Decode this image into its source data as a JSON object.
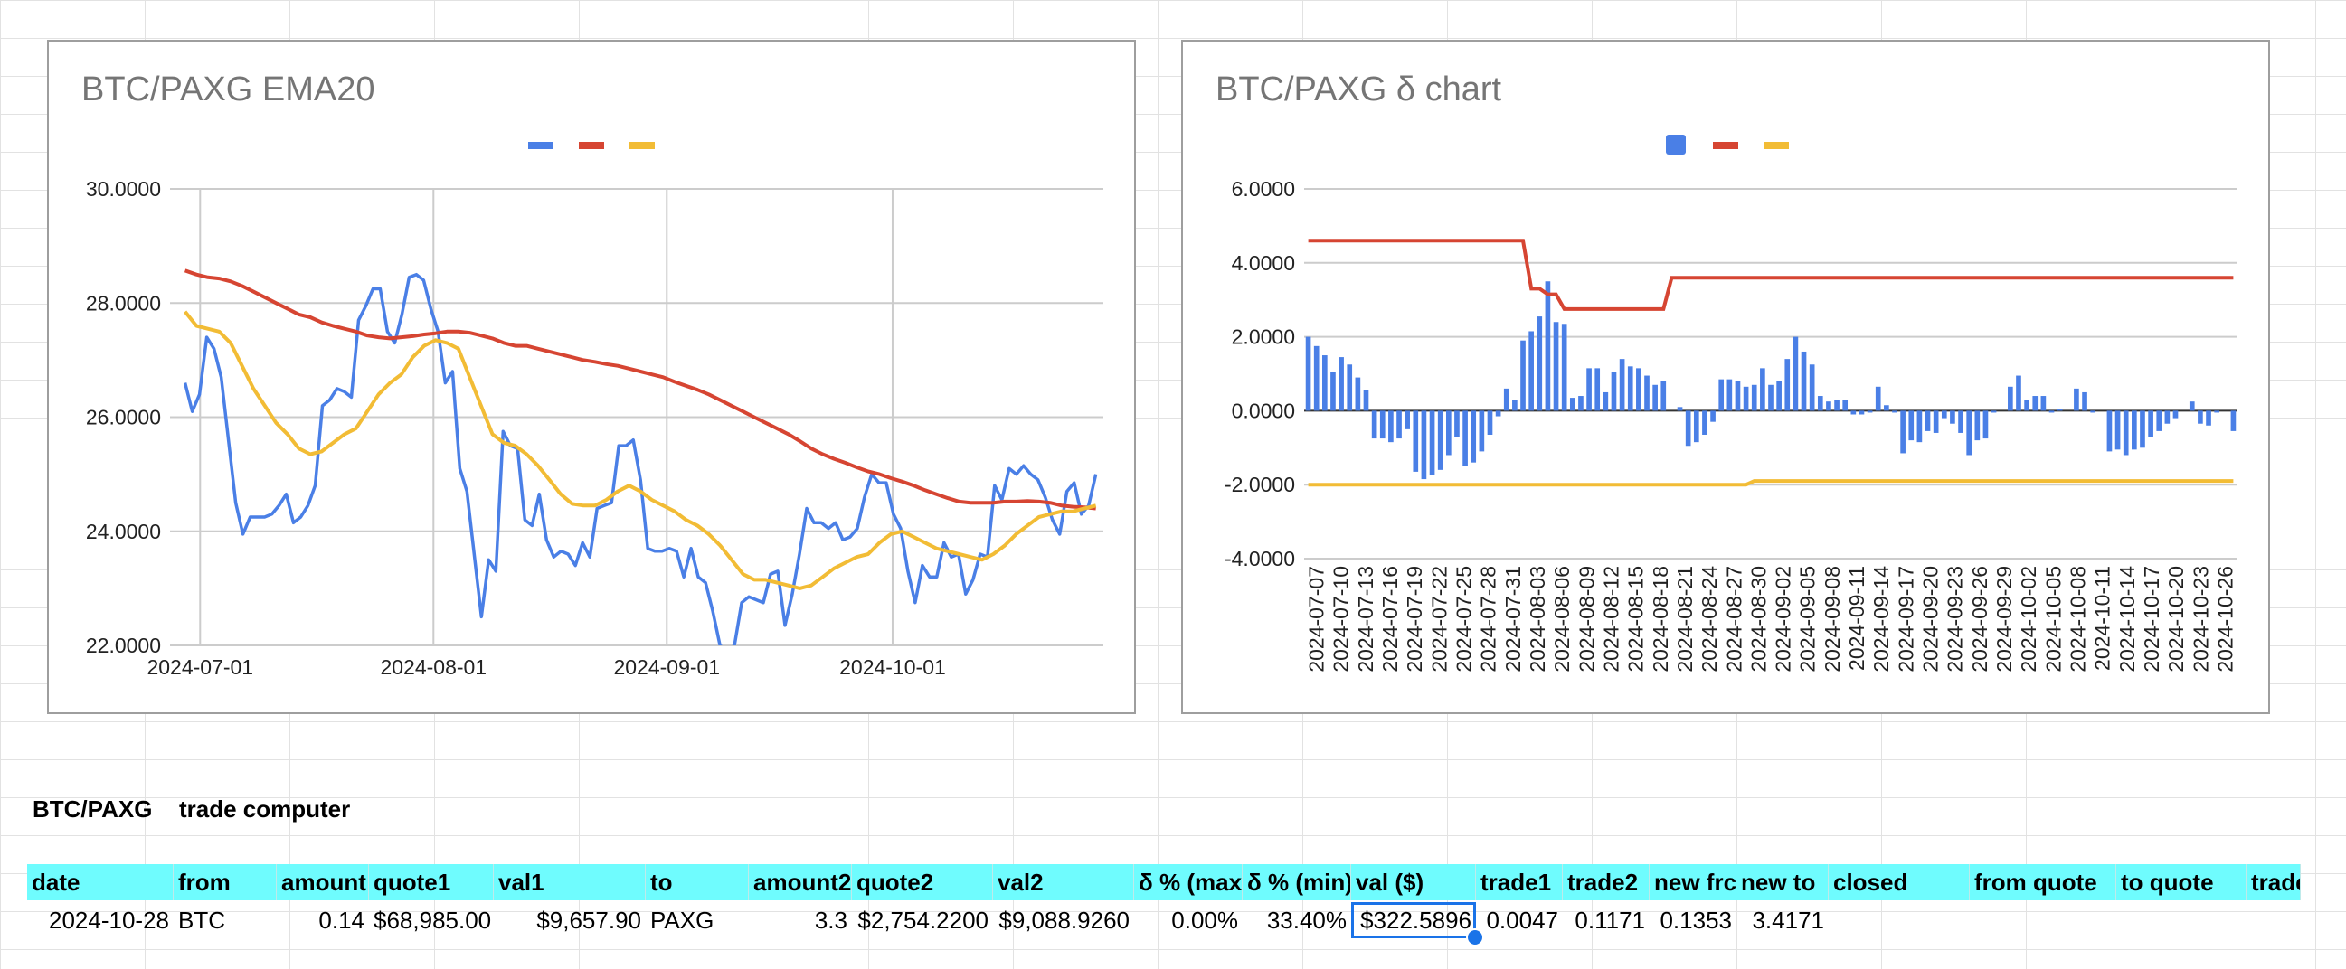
{
  "colors": {
    "blue": "#4a7fe6",
    "red": "#d64532",
    "yellow": "#f2bc35",
    "header_bg": "#6ffcfe",
    "selection": "#1a73e8"
  },
  "chart_data": [
    {
      "type": "line",
      "title": "BTC/PAXG EMA20",
      "legend": "top-center",
      "grid": true,
      "ylim": [
        22,
        30
      ],
      "y_ticks": [
        "30.0000",
        "28.0000",
        "26.0000",
        "24.0000",
        "22.0000"
      ],
      "x_ticks": [
        "2024-07-01",
        "2024-08-01",
        "2024-09-01",
        "2024-10-01"
      ],
      "x_tick_days": [
        0,
        31,
        62,
        92
      ],
      "x_start_day": -4,
      "x_end_day": 120,
      "series": [
        {
          "color": "#4a7fe6",
          "values": [
            26.6,
            26.1,
            26.4,
            27.4,
            27.2,
            26.7,
            25.6,
            24.5,
            23.95,
            24.25,
            24.25,
            24.25,
            24.3,
            24.45,
            24.65,
            24.15,
            24.25,
            24.45,
            24.8,
            26.2,
            26.3,
            26.5,
            26.45,
            26.35,
            27.7,
            27.95,
            28.25,
            28.25,
            27.5,
            27.3,
            27.8,
            28.45,
            28.5,
            28.4,
            27.9,
            27.5,
            26.6,
            26.8,
            25.1,
            24.7,
            23.6,
            22.5,
            23.5,
            23.3,
            25.75,
            25.5,
            25.45,
            24.2,
            24.1,
            24.65,
            23.85,
            23.55,
            23.65,
            23.6,
            23.4,
            23.8,
            23.55,
            24.4,
            24.45,
            24.5,
            25.5,
            25.5,
            25.6,
            24.9,
            23.7,
            23.65,
            23.65,
            23.7,
            23.65,
            23.2,
            23.7,
            23.2,
            23.1,
            22.6,
            22.0,
            21.9,
            22.0,
            22.75,
            22.85,
            22.8,
            22.75,
            23.25,
            23.3,
            22.35,
            22.9,
            23.6,
            24.4,
            24.15,
            24.15,
            24.05,
            24.15,
            23.85,
            23.9,
            24.05,
            24.6,
            25.0,
            24.85,
            24.85,
            24.3,
            24.05,
            23.3,
            22.75,
            23.4,
            23.2,
            23.2,
            23.8,
            23.55,
            23.6,
            22.9,
            23.15,
            23.6,
            23.55,
            24.8,
            24.55,
            25.1,
            25.0,
            25.15,
            25.0,
            24.9,
            24.6,
            24.2,
            23.95,
            24.7,
            24.85,
            24.3,
            24.45,
            25.0
          ]
        },
        {
          "color": "#d64532",
          "values": [
            28.57,
            28.5,
            28.45,
            28.43,
            28.38,
            28.3,
            28.2,
            28.1,
            28.0,
            27.9,
            27.8,
            27.75,
            27.66,
            27.6,
            27.55,
            27.5,
            27.43,
            27.4,
            27.38,
            27.4,
            27.42,
            27.45,
            27.47,
            27.5,
            27.5,
            27.48,
            27.43,
            27.38,
            27.3,
            27.25,
            27.25,
            27.2,
            27.15,
            27.1,
            27.05,
            27.0,
            26.97,
            26.93,
            26.9,
            26.85,
            26.8,
            26.75,
            26.7,
            26.62,
            26.55,
            26.48,
            26.4,
            26.3,
            26.2,
            26.1,
            26.0,
            25.9,
            25.8,
            25.7,
            25.58,
            25.45,
            25.35,
            25.27,
            25.2,
            25.12,
            25.05,
            25.0,
            24.93,
            24.87,
            24.8,
            24.72,
            24.65,
            24.58,
            24.52,
            24.5,
            24.5,
            24.5,
            24.52,
            24.52,
            24.53,
            24.52,
            24.5,
            24.45,
            24.43,
            24.42,
            24.4
          ]
        },
        {
          "color": "#f2bc35",
          "values": [
            27.85,
            27.6,
            27.55,
            27.5,
            27.3,
            26.9,
            26.5,
            26.2,
            25.9,
            25.7,
            25.45,
            25.35,
            25.4,
            25.55,
            25.7,
            25.8,
            26.1,
            26.4,
            26.6,
            26.75,
            27.05,
            27.25,
            27.35,
            27.3,
            27.2,
            26.7,
            26.2,
            25.7,
            25.55,
            25.5,
            25.35,
            25.15,
            24.9,
            24.65,
            24.48,
            24.45,
            24.45,
            24.55,
            24.7,
            24.8,
            24.7,
            24.55,
            24.45,
            24.35,
            24.2,
            24.1,
            23.95,
            23.75,
            23.5,
            23.25,
            23.15,
            23.15,
            23.1,
            23.05,
            23.0,
            23.05,
            23.2,
            23.35,
            23.45,
            23.55,
            23.6,
            23.8,
            23.95,
            24.0,
            23.9,
            23.8,
            23.7,
            23.65,
            23.6,
            23.55,
            23.5,
            23.6,
            23.75,
            23.95,
            24.1,
            24.25,
            24.3,
            24.35,
            24.35,
            24.4,
            24.45
          ]
        }
      ]
    },
    {
      "type": "bar",
      "title": "BTC/PAXG δ chart",
      "legend": "top-center",
      "grid": true,
      "ylim": [
        -4,
        6
      ],
      "y_ticks": [
        "6.0000",
        "4.0000",
        "2.0000",
        "0.0000",
        "-2.0000",
        "-4.0000"
      ],
      "categories": [
        "2024-07-07",
        "2024-07-10",
        "2024-07-13",
        "2024-07-16",
        "2024-07-19",
        "2024-07-22",
        "2024-07-25",
        "2024-07-28",
        "2024-07-31",
        "2024-08-03",
        "2024-08-06",
        "2024-08-09",
        "2024-08-12",
        "2024-08-15",
        "2024-08-18",
        "2024-08-21",
        "2024-08-24",
        "2024-08-27",
        "2024-08-30",
        "2024-09-02",
        "2024-09-05",
        "2024-09-08",
        "2024-09-11",
        "2024-09-14",
        "2024-09-17",
        "2024-09-20",
        "2024-09-23",
        "2024-09-26",
        "2024-09-29",
        "2024-10-02",
        "2024-10-05",
        "2024-10-08",
        "2024-10-11",
        "2024-10-14",
        "2024-10-17",
        "2024-10-20",
        "2024-10-23",
        "2024-10-26"
      ],
      "bar_values": [
        2.0,
        1.75,
        1.5,
        1.05,
        1.45,
        1.25,
        0.9,
        0.55,
        -0.75,
        -0.75,
        -0.85,
        -0.75,
        -0.5,
        -1.65,
        -1.85,
        -1.75,
        -1.6,
        -1.2,
        -0.7,
        -1.5,
        -1.4,
        -1.1,
        -0.65,
        -0.15,
        0.6,
        0.3,
        1.9,
        2.15,
        2.55,
        3.5,
        2.4,
        2.35,
        0.35,
        0.4,
        1.15,
        1.15,
        0.5,
        1.05,
        1.4,
        1.2,
        1.15,
        0.95,
        0.7,
        0.8,
        0.0,
        0.1,
        -0.95,
        -0.85,
        -0.65,
        -0.3,
        0.85,
        0.85,
        0.8,
        0.65,
        0.7,
        1.15,
        0.7,
        0.8,
        1.4,
        2.0,
        1.6,
        1.25,
        0.4,
        0.25,
        0.3,
        0.3,
        -0.1,
        -0.1,
        -0.05,
        0.65,
        0.15,
        -0.05,
        -1.15,
        -0.8,
        -0.85,
        -0.55,
        -0.6,
        -0.2,
        -0.35,
        -0.6,
        -1.2,
        -0.8,
        -0.75,
        -0.05,
        0.0,
        0.65,
        0.95,
        0.3,
        0.4,
        0.4,
        -0.05,
        0.05,
        0.0,
        0.6,
        0.5,
        -0.05,
        0.0,
        -1.1,
        -1.05,
        -1.2,
        -1.05,
        -1.0,
        -0.7,
        -0.55,
        -0.35,
        -0.2,
        0.0,
        0.25,
        -0.35,
        -0.4,
        -0.05,
        0.0,
        -0.55
      ],
      "upper_values": [
        4.6,
        4.6,
        4.6,
        4.6,
        4.6,
        4.6,
        4.6,
        4.6,
        4.6,
        4.6,
        4.6,
        4.6,
        4.6,
        4.6,
        4.6,
        4.6,
        4.6,
        4.6,
        4.6,
        4.6,
        4.6,
        4.6,
        4.6,
        4.6,
        4.6,
        4.6,
        4.6,
        3.3,
        3.3,
        3.15,
        3.15,
        2.75,
        2.75,
        2.75,
        2.75,
        2.75,
        2.75,
        2.75,
        2.75,
        2.75,
        2.75,
        2.75,
        2.75,
        2.75,
        3.6,
        3.6,
        3.6,
        3.6,
        3.6,
        3.6,
        3.6,
        3.6,
        3.6,
        3.6,
        3.6,
        3.6,
        3.6,
        3.6,
        3.6,
        3.6,
        3.6,
        3.6,
        3.6,
        3.6,
        3.6,
        3.6,
        3.6,
        3.6,
        3.6,
        3.6,
        3.6,
        3.6,
        3.6,
        3.6,
        3.6,
        3.6,
        3.6,
        3.6,
        3.6,
        3.6,
        3.6,
        3.6,
        3.6,
        3.6,
        3.6,
        3.6,
        3.6,
        3.6,
        3.6,
        3.6,
        3.6,
        3.6,
        3.6,
        3.6,
        3.6,
        3.6,
        3.6,
        3.6,
        3.6,
        3.6,
        3.6,
        3.6,
        3.6,
        3.6,
        3.6,
        3.6,
        3.6,
        3.6,
        3.6,
        3.6,
        3.6,
        3.6,
        3.6
      ],
      "lower_values": [
        -2.0,
        -2.0,
        -2.0,
        -2.0,
        -2.0,
        -2.0,
        -2.0,
        -2.0,
        -2.0,
        -2.0,
        -2.0,
        -2.0,
        -2.0,
        -2.0,
        -2.0,
        -2.0,
        -2.0,
        -2.0,
        -2.0,
        -2.0,
        -2.0,
        -2.0,
        -2.0,
        -2.0,
        -2.0,
        -2.0,
        -2.0,
        -2.0,
        -2.0,
        -2.0,
        -2.0,
        -2.0,
        -2.0,
        -2.0,
        -2.0,
        -2.0,
        -2.0,
        -2.0,
        -2.0,
        -2.0,
        -2.0,
        -2.0,
        -2.0,
        -2.0,
        -2.0,
        -2.0,
        -2.0,
        -2.0,
        -2.0,
        -2.0,
        -2.0,
        -2.0,
        -2.0,
        -2.0,
        -1.9,
        -1.9,
        -1.9,
        -1.9,
        -1.9,
        -1.9,
        -1.9,
        -1.9,
        -1.9,
        -1.9,
        -1.9,
        -1.9,
        -1.9,
        -1.9,
        -1.9,
        -1.9,
        -1.9,
        -1.9,
        -1.9,
        -1.9,
        -1.9,
        -1.9,
        -1.9,
        -1.9,
        -1.9,
        -1.9,
        -1.9,
        -1.9,
        -1.9,
        -1.9,
        -1.9,
        -1.9,
        -1.9,
        -1.9,
        -1.9,
        -1.9,
        -1.9,
        -1.9,
        -1.9,
        -1.9,
        -1.9,
        -1.9,
        -1.9,
        -1.9,
        -1.9,
        -1.9,
        -1.9,
        -1.9,
        -1.9,
        -1.9,
        -1.9,
        -1.9,
        -1.9,
        -1.9,
        -1.9,
        -1.9,
        -1.9,
        -1.9,
        -1.9
      ]
    }
  ],
  "sheet": {
    "pair_label": "BTC/PAXG",
    "tool_label": "trade computer",
    "headers": [
      "date",
      "from",
      "amount",
      "quote1",
      "val1",
      "to",
      "amount2",
      "quote2",
      "val2",
      "δ % (max",
      "δ % (min)",
      "val ($)",
      "trade1",
      "trade2",
      "new frc",
      "new to",
      "closed",
      "from quote",
      "to quote",
      "trade"
    ],
    "row": [
      "2024-10-28",
      "BTC",
      "0.14",
      "$68,985.00",
      "$9,657.90",
      "PAXG",
      "3.3",
      "$2,754.2200",
      "$9,088.9260",
      "0.00%",
      "33.40%",
      "$322.5896",
      "0.0047",
      "0.1171",
      "0.1353",
      "3.4171",
      "",
      "",
      "",
      ""
    ]
  }
}
